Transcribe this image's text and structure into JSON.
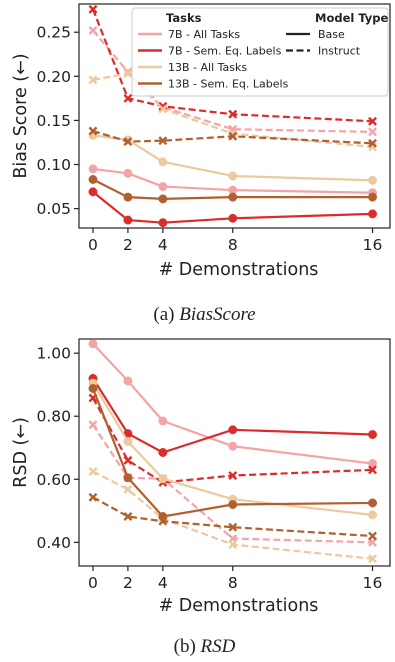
{
  "chart_data": [
    {
      "type": "line",
      "caption_prefix": "(a) ",
      "caption_name": "BiasScore",
      "xlabel": "# Demonstrations",
      "ylabel": "Bias Score (←)",
      "x": [
        0,
        2,
        4,
        8,
        16
      ],
      "xlim": [
        -0.8,
        17
      ],
      "ylim": [
        0.028,
        0.282
      ],
      "yticks": [
        "0.05",
        "0.10",
        "0.15",
        "0.20",
        "0.25"
      ],
      "ytick_values": [
        0.05,
        0.1,
        0.15,
        0.2,
        0.25
      ],
      "xticks": [
        "0",
        "2",
        "4",
        "8",
        "16"
      ],
      "legend": {
        "placement": "top-right",
        "tasks_title": "Tasks",
        "model_type_title": "Model Type",
        "base_label": "Base",
        "instruct_label": "Instruct"
      },
      "series": [
        {
          "name": "7B - All Tasks",
          "color": "#f4a3a6",
          "model_type": "Base",
          "values": [
            0.095,
            0.09,
            0.075,
            0.071,
            0.068
          ]
        },
        {
          "name": "7B - All Tasks",
          "color": "#f4a3a6",
          "model_type": "Instruct",
          "values": [
            0.252,
            0.205,
            0.165,
            0.14,
            0.137
          ]
        },
        {
          "name": "7B - Sem. Eq. Labels",
          "color": "#dc2b2b",
          "model_type": "Base",
          "values": [
            0.069,
            0.037,
            0.034,
            0.039,
            0.044
          ]
        },
        {
          "name": "7B - Sem. Eq. Labels",
          "color": "#dc2b2b",
          "model_type": "Instruct",
          "values": [
            0.276,
            0.175,
            0.166,
            0.157,
            0.149
          ]
        },
        {
          "name": "13B - All Tasks",
          "color": "#ecc99e",
          "model_type": "Base",
          "values": [
            0.133,
            0.128,
            0.103,
            0.087,
            0.082
          ]
        },
        {
          "name": "13B - All Tasks",
          "color": "#ecc99e",
          "model_type": "Instruct",
          "values": [
            0.196,
            0.203,
            0.163,
            0.135,
            0.12
          ]
        },
        {
          "name": "13B - Sem. Eq. Labels",
          "color": "#b0602e",
          "model_type": "Base",
          "values": [
            0.083,
            0.063,
            0.061,
            0.063,
            0.063
          ]
        },
        {
          "name": "13B - Sem. Eq. Labels",
          "color": "#b0602e",
          "model_type": "Instruct",
          "values": [
            0.138,
            0.126,
            0.127,
            0.132,
            0.124
          ]
        }
      ]
    },
    {
      "type": "line",
      "caption_prefix": "(b) ",
      "caption_name": "RSD",
      "xlabel": "# Demonstrations",
      "ylabel": "RSD (←)",
      "x": [
        0,
        2,
        4,
        8,
        16
      ],
      "xlim": [
        -0.8,
        17
      ],
      "ylim": [
        0.325,
        1.045
      ],
      "yticks": [
        "0.40",
        "0.60",
        "0.80",
        "1.00"
      ],
      "ytick_values": [
        0.4,
        0.6,
        0.8,
        1.0
      ],
      "xticks": [
        "0",
        "2",
        "4",
        "8",
        "16"
      ],
      "series": [
        {
          "name": "7B - All Tasks",
          "color": "#f4a3a6",
          "model_type": "Base",
          "values": [
            1.03,
            0.912,
            0.785,
            0.705,
            0.65
          ]
        },
        {
          "name": "7B - All Tasks",
          "color": "#f4a3a6",
          "model_type": "Instruct",
          "values": [
            0.773,
            0.605,
            0.602,
            0.412,
            0.4
          ]
        },
        {
          "name": "7B - Sem. Eq. Labels",
          "color": "#dc2b2b",
          "model_type": "Base",
          "values": [
            0.92,
            0.745,
            0.685,
            0.757,
            0.742
          ]
        },
        {
          "name": "7B - Sem. Eq. Labels",
          "color": "#dc2b2b",
          "model_type": "Instruct",
          "values": [
            0.858,
            0.66,
            0.59,
            0.612,
            0.63
          ]
        },
        {
          "name": "13B - All Tasks",
          "color": "#ecc99e",
          "model_type": "Base",
          "values": [
            0.905,
            0.72,
            0.602,
            0.537,
            0.487
          ]
        },
        {
          "name": "13B - All Tasks",
          "color": "#ecc99e",
          "model_type": "Instruct",
          "values": [
            0.625,
            0.568,
            0.475,
            0.393,
            0.348
          ]
        },
        {
          "name": "13B - Sem. Eq. Labels",
          "color": "#b0602e",
          "model_type": "Base",
          "values": [
            0.888,
            0.605,
            0.482,
            0.52,
            0.525
          ]
        },
        {
          "name": "13B - Sem. Eq. Labels",
          "color": "#b0602e",
          "model_type": "Instruct",
          "values": [
            0.543,
            0.482,
            0.467,
            0.448,
            0.42
          ]
        }
      ]
    }
  ]
}
